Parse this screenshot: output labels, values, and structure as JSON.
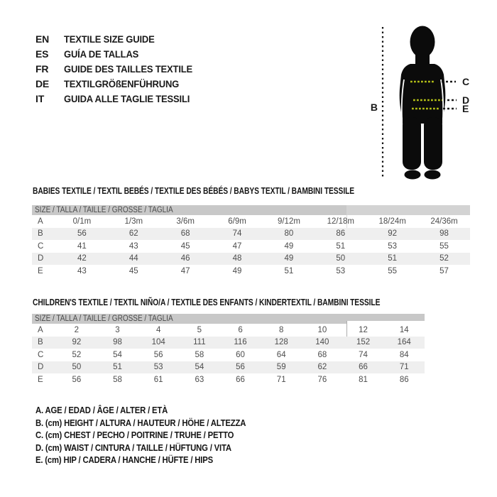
{
  "languages": [
    {
      "code": "EN",
      "label": "TEXTILE SIZE GUIDE"
    },
    {
      "code": "ES",
      "label": "GUÍA DE TALLAS"
    },
    {
      "code": "FR",
      "label": "GUIDE DES TAILLES TEXTILE"
    },
    {
      "code": "DE",
      "label": "TEXTILGRÖßENFÜHRUNG"
    },
    {
      "code": "IT",
      "label": "GUIDA ALLE TAGLIE TESSILI"
    }
  ],
  "figure": {
    "height_label": "B",
    "chest_label": "C",
    "waist_label": "D",
    "hip_label": "E"
  },
  "babies_table": {
    "title": "BABIES TEXTILE / TEXTIL BEBÉS / TEXTILE DES BÉBÉS / BABYS TEXTIL / BAMBINI TESSILE",
    "header": "SIZE / TALLA / TAILLE / GRÖSSE / TAGLIA",
    "rows": [
      {
        "label": "A",
        "values": [
          "0/1m",
          "1/3m",
          "3/6m",
          "6/9m",
          "9/12m",
          "12/18m",
          "18/24m",
          "24/36m"
        ]
      },
      {
        "label": "B",
        "values": [
          "56",
          "62",
          "68",
          "74",
          "80",
          "86",
          "92",
          "98"
        ]
      },
      {
        "label": "C",
        "values": [
          "41",
          "43",
          "45",
          "47",
          "49",
          "51",
          "53",
          "55"
        ]
      },
      {
        "label": "D",
        "values": [
          "42",
          "44",
          "46",
          "48",
          "49",
          "50",
          "51",
          "52"
        ]
      },
      {
        "label": "E",
        "values": [
          "43",
          "45",
          "47",
          "49",
          "51",
          "53",
          "55",
          "57"
        ]
      }
    ]
  },
  "children_table": {
    "title": "CHILDREN'S TEXTILE / TEXTIL NIÑO/A / TEXTILE DES ENFANTS / KINDERTEXTIL / BAMBINI TESSILE",
    "header": "SIZE / TALLA / TAILLE / GRÖSSE / TAGLIA",
    "rows": [
      {
        "label": "A",
        "values": [
          "2",
          "3",
          "4",
          "5",
          "6",
          "8",
          "10",
          "12",
          "14"
        ]
      },
      {
        "label": "B",
        "values": [
          "92",
          "98",
          "104",
          "111",
          "116",
          "128",
          "140",
          "152",
          "164"
        ]
      },
      {
        "label": "C",
        "values": [
          "52",
          "54",
          "56",
          "58",
          "60",
          "64",
          "68",
          "74",
          "84"
        ]
      },
      {
        "label": "D",
        "values": [
          "50",
          "51",
          "53",
          "54",
          "56",
          "59",
          "62",
          "66",
          "71"
        ]
      },
      {
        "label": "E",
        "values": [
          "56",
          "58",
          "61",
          "63",
          "66",
          "71",
          "76",
          "81",
          "86"
        ]
      }
    ]
  },
  "legend": [
    "A. AGE / EDAD / ÂGE / ALTER / ETÀ",
    "B. (cm) HEIGHT / ALTURA / HAUTEUR / HÖHE / ALTEZZA",
    "C. (cm) CHEST / PECHO / POITRINE / TRUHE / PETTO",
    "D. (cm) WAIST / CINTURA / TAILLE / HÜFTUNG / VITA",
    "E. (cm) HIP / CADERA / HANCHE / HÜFTE / HIPS"
  ],
  "colors": {
    "band": "#c8c8c8",
    "stripe": "#efefef",
    "silhouette": "#0b0b0b",
    "body_dash": "#b3bf17",
    "measure_dash": "#151515"
  }
}
